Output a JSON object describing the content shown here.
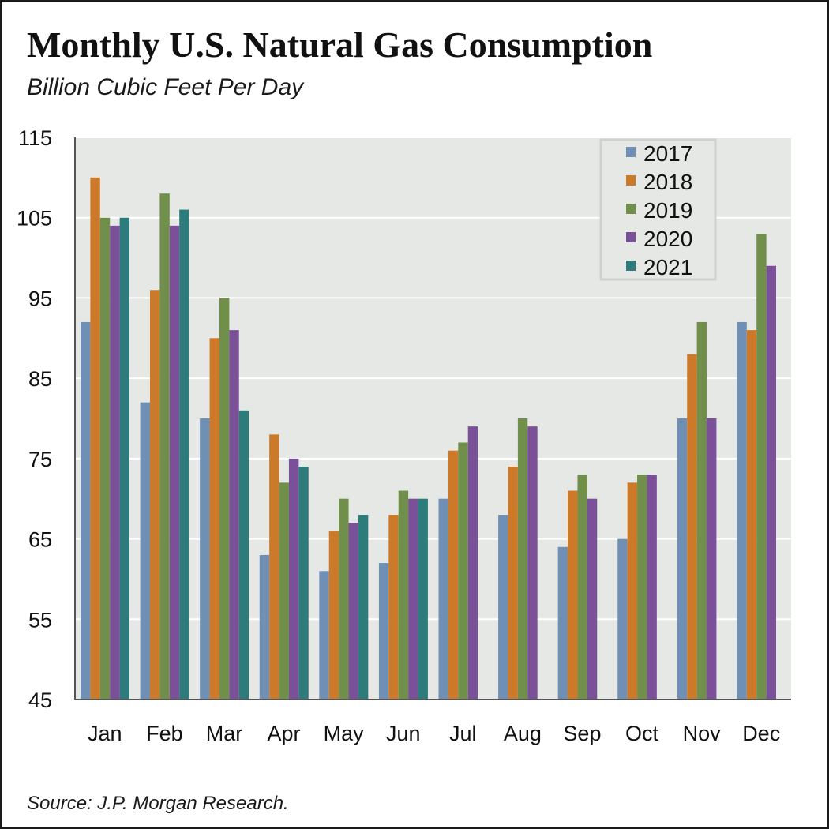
{
  "title": "Monthly U.S. Natural Gas Consumption",
  "subtitle": "Billion Cubic Feet Per Day",
  "source": "Source: J.P. Morgan Research.",
  "chart_data": {
    "type": "bar",
    "title": "Monthly U.S. Natural Gas Consumption",
    "ylabel": "Billion Cubic Feet Per Day",
    "xlabel": "",
    "ylim": [
      45,
      115
    ],
    "yticks": [
      45,
      55,
      65,
      75,
      85,
      95,
      105,
      115
    ],
    "grid": true,
    "legend_position": "top-right",
    "categories": [
      "Jan",
      "Feb",
      "Mar",
      "Apr",
      "May",
      "Jun",
      "Jul",
      "Aug",
      "Sep",
      "Oct",
      "Nov",
      "Dec"
    ],
    "series": [
      {
        "name": "2017",
        "color": "#6f8fb5",
        "values": [
          92,
          82,
          80,
          63,
          61,
          62,
          70,
          68,
          64,
          65,
          80,
          92
        ]
      },
      {
        "name": "2018",
        "color": "#cc7a2a",
        "values": [
          110,
          96,
          90,
          78,
          66,
          68,
          76,
          74,
          71,
          72,
          88,
          91
        ]
      },
      {
        "name": "2019",
        "color": "#6f8f4b",
        "values": [
          105,
          108,
          95,
          72,
          70,
          71,
          77,
          80,
          73,
          73,
          92,
          103
        ]
      },
      {
        "name": "2020",
        "color": "#7a5199",
        "values": [
          104,
          104,
          91,
          75,
          67,
          70,
          79,
          79,
          70,
          73,
          80,
          99
        ]
      },
      {
        "name": "2021",
        "color": "#2e7b7b",
        "values": [
          105,
          106,
          81,
          74,
          68,
          70,
          null,
          null,
          null,
          null,
          null,
          null
        ]
      }
    ],
    "colors": {
      "plot_background": "#e6e8e6",
      "gridline": "#ffffff"
    }
  }
}
